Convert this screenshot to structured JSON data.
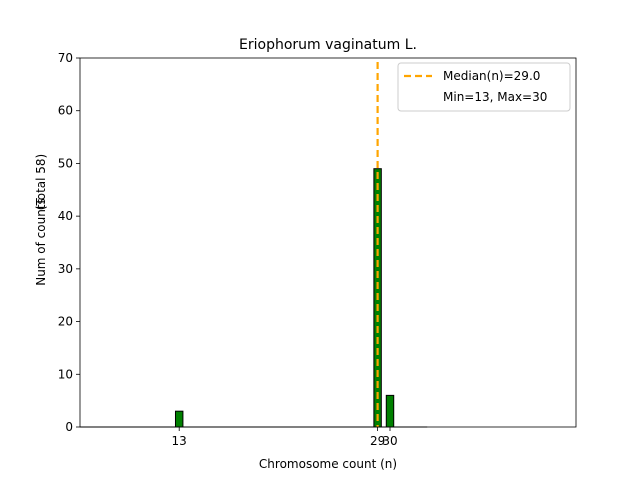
{
  "chart_data": {
    "type": "bar",
    "title": "Eriophorum vaginatum L.",
    "xlabel": "Chromosome count (n)",
    "ylabel_lines": [
      "Num of counts",
      "(Total 58)"
    ],
    "xlim": [
      5,
      45
    ],
    "ylim": [
      0,
      70
    ],
    "bar_width": 0.6,
    "xticks": [
      13,
      29,
      30
    ],
    "yticks": [
      0,
      10,
      20,
      30,
      40,
      50,
      60,
      70
    ],
    "bars": [
      {
        "x": 13,
        "value": 3
      },
      {
        "x": 29,
        "value": 49
      },
      {
        "x": 30,
        "value": 6
      }
    ],
    "median": 29.0,
    "legend": {
      "position": "top-right",
      "entries": [
        "Median(n)=29.0",
        "Min=13, Max=30"
      ]
    },
    "colors": {
      "bar": "#008000",
      "bar_edge": "#000000",
      "median_line": "#ffa500"
    }
  }
}
